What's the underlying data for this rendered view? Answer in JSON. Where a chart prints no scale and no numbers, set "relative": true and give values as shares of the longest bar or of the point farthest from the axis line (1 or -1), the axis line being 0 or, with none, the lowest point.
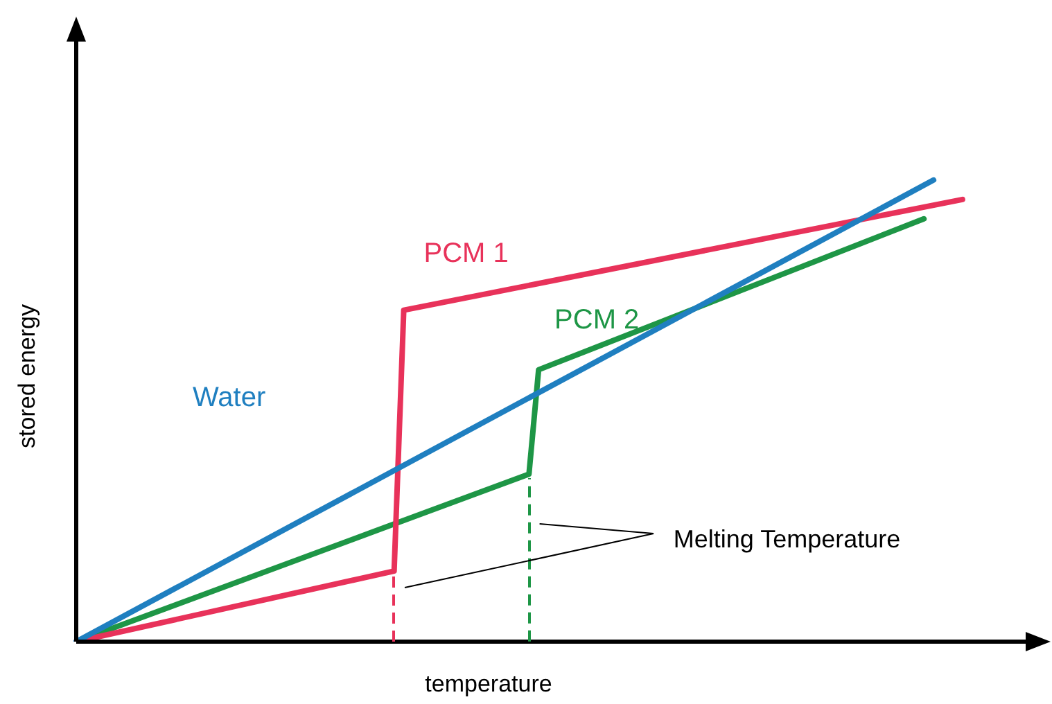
{
  "chart_data": {
    "type": "line",
    "relative": true,
    "xlabel": "temperature",
    "ylabel": "stored energy",
    "line_style": "solid",
    "categories": [
      null,
      null,
      null,
      null,
      null,
      null,
      null,
      null,
      null,
      null,
      null,
      null,
      null,
      null,
      null,
      null,
      null,
      null,
      null,
      null,
      null,
      null,
      null,
      null,
      null,
      null,
      null,
      null,
      null,
      null,
      null,
      null,
      null,
      null,
      null,
      null,
      null,
      null,
      null,
      null,
      null,
      null,
      null,
      null,
      null,
      null,
      null,
      null,
      null,
      null,
      null,
      null,
      null,
      null,
      null,
      null,
      null,
      null,
      null,
      null,
      null,
      null,
      null,
      null,
      null,
      null,
      null,
      null,
      null,
      null,
      null,
      null,
      null,
      null,
      null,
      null,
      null,
      null,
      null,
      null,
      null,
      null,
      null,
      null,
      null,
      null,
      null,
      null,
      null,
      null,
      null,
      null,
      null,
      null,
      null,
      null,
      null,
      null,
      null,
      null,
      null
    ],
    "series": [
      {
        "name": "Water",
        "color": "#1f7fc0",
        "values": [
          0,
          null,
          null,
          null,
          null,
          null,
          null,
          null,
          null,
          null,
          null,
          null,
          null,
          null,
          null,
          null,
          null,
          null,
          null,
          null,
          null,
          null,
          null,
          null,
          null,
          null,
          null,
          null,
          null,
          null,
          null,
          null,
          null,
          null,
          null,
          null,
          null,
          null,
          null,
          null,
          null,
          null,
          null,
          null,
          null,
          null,
          null,
          null,
          null,
          null,
          null,
          null,
          null,
          null,
          null,
          null,
          null,
          null,
          null,
          null,
          null,
          null,
          null,
          null,
          null,
          null,
          null,
          null,
          null,
          null,
          null,
          null,
          null,
          null,
          null,
          null,
          null,
          null,
          null,
          null,
          null,
          null,
          null,
          null,
          null,
          null,
          null,
          null,
          null,
          1,
          null,
          null,
          null,
          null,
          null,
          null,
          null,
          null,
          null,
          null,
          null
        ]
      },
      {
        "name": "PCM 1",
        "color": "#e8325a",
        "values": [
          0,
          null,
          null,
          null,
          null,
          null,
          null,
          null,
          null,
          null,
          null,
          null,
          null,
          null,
          null,
          null,
          null,
          null,
          null,
          null,
          null,
          null,
          null,
          null,
          null,
          null,
          null,
          null,
          null,
          null,
          null,
          null,
          null,
          0.153,
          0.718,
          null,
          null,
          null,
          null,
          null,
          null,
          null,
          null,
          null,
          null,
          null,
          null,
          null,
          null,
          null,
          null,
          null,
          null,
          null,
          null,
          null,
          null,
          null,
          null,
          null,
          null,
          null,
          null,
          null,
          null,
          null,
          null,
          null,
          null,
          null,
          null,
          null,
          null,
          null,
          null,
          null,
          null,
          null,
          null,
          null,
          null,
          null,
          null,
          null,
          null,
          null,
          null,
          null,
          null,
          null,
          null,
          null,
          0.958,
          null,
          null,
          null,
          null,
          null,
          null,
          null,
          null
        ]
      },
      {
        "name": "PCM 2",
        "color": "#1e9646",
        "values": [
          0,
          null,
          null,
          null,
          null,
          null,
          null,
          null,
          null,
          null,
          null,
          null,
          null,
          null,
          null,
          null,
          null,
          null,
          null,
          null,
          null,
          null,
          null,
          null,
          null,
          null,
          null,
          null,
          null,
          null,
          null,
          null,
          null,
          null,
          null,
          null,
          null,
          null,
          null,
          null,
          null,
          null,
          null,
          null,
          null,
          null,
          null,
          0.363,
          0.589,
          null,
          null,
          null,
          null,
          null,
          null,
          null,
          null,
          null,
          null,
          null,
          null,
          null,
          null,
          null,
          null,
          null,
          null,
          null,
          null,
          null,
          null,
          null,
          null,
          null,
          null,
          null,
          null,
          null,
          null,
          null,
          null,
          null,
          null,
          null,
          null,
          null,
          null,
          null,
          0.916,
          null,
          null,
          null,
          null,
          null,
          null,
          null,
          null,
          null,
          null,
          null,
          null
        ]
      }
    ],
    "annotations": [
      "Melting Temperature"
    ]
  }
}
